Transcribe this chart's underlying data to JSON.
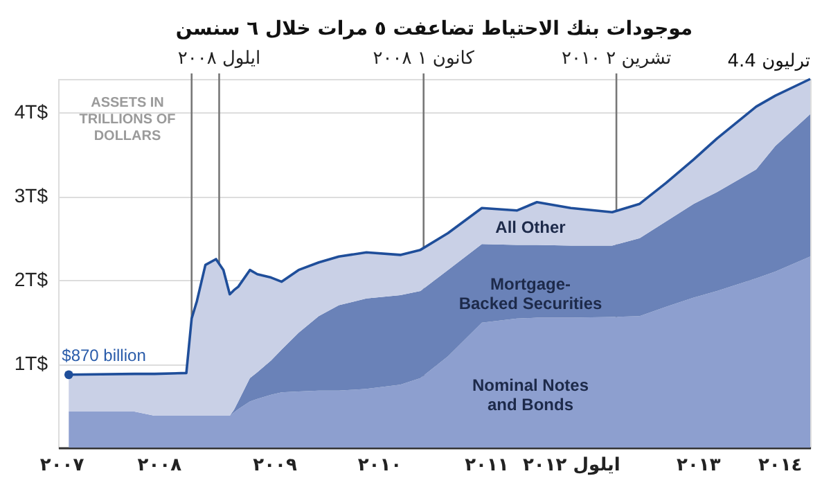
{
  "chart_data": {
    "type": "area",
    "title": "موجودات بنك الاحتياط تضاعفت ٥ مرات خلال ٦ سنسن",
    "stacked": true,
    "x": [
      2007.55,
      2008.17,
      2008.36,
      2008.66,
      2008.71,
      2008.76,
      2008.84,
      2008.94,
      2009.01,
      2009.07,
      2009.11,
      2009.15,
      2009.26,
      2009.33,
      2009.46,
      2009.56,
      2009.72,
      2009.91,
      2010.1,
      2010.36,
      2010.68,
      2010.87,
      2011.13,
      2011.45,
      2011.78,
      2011.97,
      2012.29,
      2012.68,
      2012.94,
      2013.19,
      2013.45,
      2013.67,
      2014.04,
      2014.22,
      2014.55
    ],
    "series": [
      {
        "name": "Nominal Notes and Bonds",
        "color": "#8d9fcf",
        "values": [
          0.43,
          0.43,
          0.38,
          0.38,
          0.38,
          0.38,
          0.38,
          0.38,
          0.38,
          0.38,
          0.42,
          0.46,
          0.55,
          0.58,
          0.63,
          0.66,
          0.67,
          0.68,
          0.68,
          0.7,
          0.75,
          0.83,
          1.09,
          1.49,
          1.54,
          1.55,
          1.55,
          1.56,
          1.57,
          1.68,
          1.79,
          1.87,
          2.02,
          2.1,
          2.28
        ]
      },
      {
        "name": "Mortgage-Backed Securities",
        "color": "#6a82b8",
        "values": [
          0,
          0,
          0,
          0,
          0,
          0,
          0,
          0,
          0,
          0,
          0.03,
          0.09,
          0.28,
          0.32,
          0.41,
          0.51,
          0.7,
          0.89,
          1.02,
          1.08,
          1.07,
          1.04,
          1.03,
          0.94,
          0.88,
          0.87,
          0.86,
          0.85,
          0.93,
          1.02,
          1.12,
          1.18,
          1.3,
          1.5,
          1.7
        ]
      },
      {
        "name": "All Other",
        "color": "#c9d0e6",
        "values": [
          0.44,
          0.45,
          0.5,
          0.51,
          1.16,
          1.37,
          1.8,
          1.87,
          1.74,
          1.45,
          1.43,
          1.37,
          1.29,
          1.17,
          0.99,
          0.81,
          0.75,
          0.64,
          0.58,
          0.55,
          0.48,
          0.49,
          0.44,
          0.43,
          0.41,
          0.51,
          0.45,
          0.4,
          0.41,
          0.46,
          0.53,
          0.64,
          0.75,
          0.6,
          0.42
        ]
      }
    ],
    "xlim": [
      2007.45,
      2014.55
    ],
    "xticks": [
      {
        "value": 2007.48,
        "label": "٢٠٠٧"
      },
      {
        "value": 2008.4,
        "label": "٢٠٠٨"
      },
      {
        "value": 2009.49,
        "label": "٢٠٠٩"
      },
      {
        "value": 2010.48,
        "label": "٢٠١٠"
      },
      {
        "value": 2011.49,
        "label": "٢٠١١"
      },
      {
        "value": 2012.29,
        "label": "ايلول ٢٠١٢"
      },
      {
        "value": 2013.49,
        "label": "٢٠١٣"
      },
      {
        "value": 2014.26,
        "label": "٢٠١٤"
      }
    ],
    "ylim": [
      0,
      4.4
    ],
    "yticks": [
      {
        "value": 1,
        "label": "1T$"
      },
      {
        "value": 2,
        "label": "2T$"
      },
      {
        "value": 3,
        "label": "3T$"
      },
      {
        "value": 4,
        "label": "4T$"
      }
    ],
    "grid": "y",
    "ref_lines": [
      {
        "axis": "x",
        "value": 2008.71,
        "label": null,
        "color": "#777777"
      },
      {
        "axis": "x",
        "value": 2008.97,
        "label": "ايلول ٢٠٠٨",
        "color": "#777777"
      },
      {
        "axis": "x",
        "value": 2010.9,
        "label": "كانون ١ ٢٠٠٨",
        "color": "#777777"
      },
      {
        "axis": "x",
        "value": 2012.72,
        "label": "تشرين ٢ ٢٠١٠",
        "color": "#777777"
      }
    ],
    "annotations": [
      "ASSETS IN TRILLIONS OF DOLLARS",
      {
        "text": "$870 billion",
        "x": 2007.55,
        "y": 0.87
      },
      {
        "text": "4.4 ترليون",
        "x": 2014.55,
        "y": 4.4
      }
    ]
  }
}
